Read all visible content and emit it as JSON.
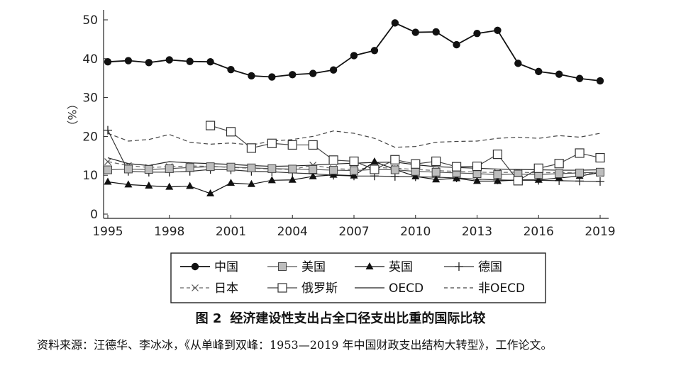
{
  "chart_data": {
    "type": "line",
    "ylabel": "（%）",
    "ylim": [
      0,
      52
    ],
    "yticks": [
      0,
      10,
      20,
      30,
      40,
      50
    ],
    "xlim": [
      1995,
      2019
    ],
    "xticks": [
      1995,
      1998,
      2001,
      2004,
      2007,
      2010,
      2013,
      2016,
      2019
    ],
    "series": [
      {
        "name": "中国",
        "marker": "dot",
        "line": "solid",
        "x_start": 1995,
        "values": [
          39.2,
          39.5,
          39.0,
          39.7,
          39.3,
          39.2,
          37.2,
          35.6,
          35.3,
          35.9,
          36.2,
          37.1,
          40.8,
          42.1,
          49.2,
          46.8,
          46.9,
          43.6,
          46.5,
          47.3,
          38.8,
          36.7,
          36.0,
          34.9,
          34.3
        ]
      },
      {
        "name": "美国",
        "marker": "square-gray",
        "line": "solid",
        "x_start": 1995,
        "values": [
          11.4,
          11.6,
          11.5,
          11.7,
          12.0,
          12.2,
          12.1,
          11.9,
          11.7,
          11.6,
          11.5,
          11.3,
          11.2,
          11.5,
          11.4,
          11.0,
          10.8,
          10.6,
          10.4,
          10.2,
          10.3,
          10.2,
          10.4,
          10.6,
          10.8
        ]
      },
      {
        "name": "英国",
        "marker": "triangle",
        "line": "solid",
        "x_start": 1995,
        "values": [
          8.3,
          7.6,
          7.3,
          7.0,
          7.2,
          5.3,
          8.0,
          7.7,
          8.7,
          8.8,
          9.7,
          10.1,
          9.9,
          13.5,
          11.5,
          9.7,
          8.9,
          9.2,
          8.5,
          8.5,
          8.8,
          8.8,
          9.3,
          9.8,
          10.7
        ]
      },
      {
        "name": "德国",
        "marker": "plus",
        "line": "solid",
        "x_start": 1995,
        "values": [
          21.6,
          11.0,
          10.8,
          10.8,
          11.0,
          11.5,
          11.4,
          11.0,
          10.9,
          10.6,
          10.4,
          10.0,
          9.8,
          9.8,
          9.7,
          9.6,
          9.5,
          9.3,
          9.0,
          8.8,
          8.7,
          8.7,
          8.6,
          8.5,
          8.4
        ]
      },
      {
        "name": "日本",
        "marker": "cross",
        "line": "dashed",
        "x_start": 1995,
        "values": [
          13.5,
          12.5,
          12.0,
          12.2,
          12.4,
          12.3,
          12.0,
          11.8,
          11.6,
          11.5,
          12.6,
          11.7,
          11.5,
          12.0,
          11.8,
          11.5,
          11.2,
          11.0,
          10.8,
          10.7,
          10.8,
          10.6,
          10.7,
          10.6,
          10.5
        ]
      },
      {
        "name": "俄罗斯",
        "marker": "square-open",
        "line": "solid",
        "x_start": 2000,
        "values": [
          22.8,
          21.2,
          17.0,
          18.2,
          17.8,
          17.8,
          13.9,
          13.6,
          11.5,
          14.0,
          12.9,
          13.6,
          12.2,
          12.3,
          15.4,
          8.6,
          11.8,
          13.0,
          15.7,
          14.5
        ]
      },
      {
        "name": "OECD",
        "marker": "none",
        "line": "solid",
        "x_start": 1995,
        "values": [
          14.5,
          13.0,
          12.5,
          13.5,
          13.2,
          13.0,
          12.8,
          12.5,
          12.3,
          12.4,
          12.6,
          12.9,
          13.1,
          13.3,
          13.4,
          12.7,
          12.2,
          12.0,
          11.8,
          11.6,
          11.5,
          11.4,
          11.3,
          11.3,
          11.4
        ]
      },
      {
        "name": "非OECD",
        "marker": "none",
        "line": "dashed",
        "x_start": 1995,
        "values": [
          20.8,
          18.8,
          19.2,
          20.5,
          18.5,
          18.0,
          18.3,
          17.8,
          18.8,
          19.2,
          20.0,
          21.4,
          20.8,
          19.5,
          17.2,
          17.4,
          18.5,
          18.7,
          18.8,
          19.5,
          19.8,
          19.5,
          20.2,
          19.8,
          20.8
        ]
      }
    ],
    "legend_rows": [
      [
        "中国",
        "美国",
        "英国",
        "德国"
      ],
      [
        "日本",
        "俄罗斯",
        "OECD",
        "非OECD"
      ]
    ],
    "legend_position": "bottom"
  },
  "figure": {
    "number": "图 2",
    "title": "经济建设性支出占全口径支出比重的国际比较"
  },
  "source": {
    "text": "资料来源：汪德华、李冰冰，《从单峰到双峰：1953—2019 年中国财政支出结构大转型》，工作论文。"
  }
}
